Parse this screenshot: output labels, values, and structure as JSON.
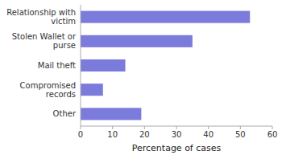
{
  "chart_data": {
    "type": "bar",
    "orientation": "horizontal",
    "categories": [
      "Relationship with\nvictim",
      "Stolen Wallet or\npurse",
      "Mail theft",
      "Compromised\nrecords",
      "Other"
    ],
    "values": [
      53,
      35,
      14,
      7,
      19
    ],
    "color": "#7b7bdb",
    "xlabel": "Percentage of cases",
    "xlim": [
      0,
      60
    ],
    "xticks": [
      0,
      10,
      20,
      30,
      40,
      50,
      60
    ]
  }
}
